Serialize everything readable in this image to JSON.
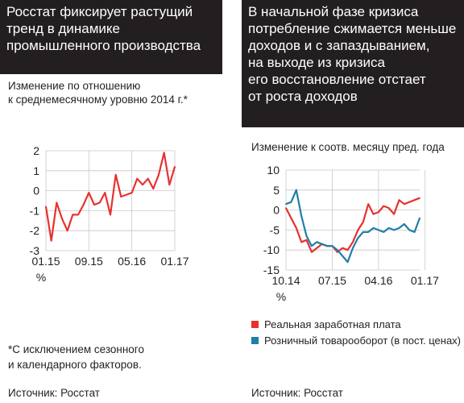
{
  "left": {
    "title_lines": [
      "Росстат фиксирует растущий",
      "тренд в динамике",
      "промышленного производства"
    ],
    "subtitle_lines": [
      "Изменение по отношению",
      "к среднемесячному уровню 2014 г.*"
    ],
    "note_lines": [
      "*С исключением сезонного",
      "и календарного факторов."
    ],
    "source": "Источник: Росстат"
  },
  "right": {
    "title_lines": [
      "В начальной фазе кризиса",
      "потребление сжимается меньше",
      "доходов и с запаздыванием,",
      "на выходе из кризиса",
      "его восстановление отстает",
      "от роста доходов"
    ],
    "subtitle": "Изменение к соотв. месяцу пред. года",
    "legend": [
      {
        "label": "Реальная заработная плата",
        "color": "#e8312f"
      },
      {
        "label": "Розничный товарооборот (в пост. ценах)",
        "color": "#1f7fa6"
      }
    ],
    "source": "Источник: Росстат"
  },
  "chart_data": [
    {
      "type": "line",
      "title": "Росстат фиксирует растущий тренд в динамике промышленного производства",
      "ylabel": "Изменение по отношению к среднемесячному уровню 2014 г.*",
      "xlabel": "",
      "ylim": [
        -3,
        2
      ],
      "yticks": [
        "2",
        "1",
        "0",
        "-1",
        "-2",
        "-3"
      ],
      "unit_label": "%",
      "xticks": [
        {
          "index": 0,
          "label": "01.15"
        },
        {
          "index": 8,
          "label": "09.15"
        },
        {
          "index": 16,
          "label": "05.16"
        },
        {
          "index": 24,
          "label": "01.17"
        }
      ],
      "series": [
        {
          "color": "#e8312f",
          "values": [
            -0.8,
            -2.5,
            -0.6,
            -1.4,
            -2.0,
            -1.2,
            -1.2,
            -0.7,
            -0.1,
            -0.7,
            -0.6,
            -0.1,
            -1.2,
            0.8,
            -0.3,
            -0.2,
            -0.1,
            0.6,
            0.3,
            0.6,
            0.1,
            0.8,
            1.9,
            0.3,
            1.2
          ]
        }
      ]
    },
    {
      "type": "line",
      "title": "В начальной фазе кризиса потребление сжимается меньше доходов и с запаздыванием, на выходе из кризиса его восстановление отстает от роста доходов",
      "ylabel": "Изменение к соотв. месяцу пред. года",
      "xlabel": "",
      "ylim": [
        -15,
        10
      ],
      "yticks": [
        "10",
        "5",
        "0",
        "-5",
        "-10",
        "-15"
      ],
      "unit_label": "%",
      "xticks": [
        {
          "index": 0,
          "label": "10.14"
        },
        {
          "index": 9,
          "label": "07.15"
        },
        {
          "index": 18,
          "label": "04.16"
        },
        {
          "index": 27,
          "label": "01.17"
        }
      ],
      "series": [
        {
          "name": "Реальная заработная плата",
          "color": "#e8312f",
          "values": [
            0.5,
            -2.0,
            -4.5,
            -8.0,
            -7.5,
            -10.5,
            -9.5,
            -8.5,
            -9.0,
            -9.0,
            -10.5,
            -9.5,
            -10.0,
            -8.0,
            -5.0,
            -3.0,
            1.5,
            -1.0,
            -0.5,
            1.0,
            0.5,
            -1.0,
            2.5,
            1.5,
            2.0,
            2.5,
            3.0
          ]
        },
        {
          "name": "Розничный товарооборот (в пост. ценах)",
          "color": "#1f7fa6",
          "values": [
            1.5,
            2.0,
            5.0,
            -1.5,
            -6.5,
            -9.0,
            -8.0,
            -8.5,
            -9.0,
            -9.0,
            -10.0,
            -11.5,
            -13.0,
            -9.5,
            -7.0,
            -5.5,
            -5.5,
            -4.5,
            -5.0,
            -5.5,
            -4.5,
            -5.0,
            -4.5,
            -3.5,
            -5.0,
            -5.5,
            -2.0
          ]
        }
      ]
    }
  ]
}
